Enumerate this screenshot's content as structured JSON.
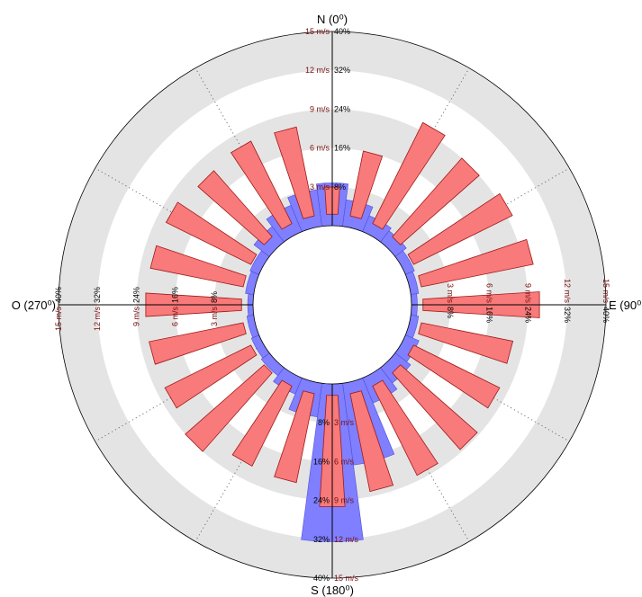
{
  "chart_data": {
    "type": "polar-bar",
    "subtype": "wind-rose",
    "compass_labels": {
      "north": "N (0⁰)",
      "east": "E (90⁰",
      "south": "S (180⁰)",
      "west": "O (270⁰)"
    },
    "direction_step_deg": 15,
    "angular_grid_step_deg": 30,
    "frequency_axis": {
      "unit": "%",
      "ticks": [
        8,
        16,
        24,
        32,
        40
      ],
      "tick_labels": [
        "8%",
        "16%",
        "24%",
        "32%",
        "40%"
      ],
      "range": [
        0,
        40
      ]
    },
    "speed_axis": {
      "unit": "m/s",
      "ticks": [
        3,
        6,
        9,
        12,
        15
      ],
      "tick_labels": [
        "3 m/s",
        "6 m/s",
        "9 m/s",
        "12 m/s",
        "15 m/s"
      ],
      "range": [
        0,
        15
      ]
    },
    "series": [
      {
        "name": "frequency",
        "axis": "frequency",
        "color": "#7f7fff",
        "edge_color": "#5050d8",
        "directions_deg": [
          0,
          15,
          30,
          45,
          60,
          75,
          90,
          105,
          120,
          135,
          150,
          165,
          180,
          195,
          210,
          225,
          240,
          255,
          270,
          285,
          300,
          315,
          330,
          345
        ],
        "values": [
          8.8,
          5.5,
          3.6,
          2.9,
          2.0,
          1.6,
          1.2,
          1.6,
          3.0,
          4.0,
          5.6,
          17.0,
          32.5,
          7.0,
          3.6,
          2.1,
          1.7,
          1.4,
          1.1,
          1.7,
          2.0,
          4.0,
          5.9,
          7.6
        ]
      },
      {
        "name": "mean speed",
        "axis": "speed",
        "color": "#f87a7a",
        "edge_color": "#a01818",
        "directions_deg": [
          0,
          15,
          30,
          45,
          60,
          75,
          90,
          105,
          120,
          135,
          150,
          165,
          180,
          195,
          210,
          225,
          240,
          255,
          270,
          285,
          300,
          315,
          330,
          345
        ],
        "values": [
          3.0,
          6.0,
          9.6,
          9.0,
          9.4,
          9.7,
          9.9,
          8.1,
          8.3,
          8.8,
          8.6,
          8.6,
          9.5,
          7.9,
          7.8,
          9.0,
          8.3,
          8.3,
          8.3,
          8.2,
          8.2,
          7.7,
          8.0,
          7.9
        ]
      }
    ],
    "grid": true,
    "legend": "none"
  }
}
